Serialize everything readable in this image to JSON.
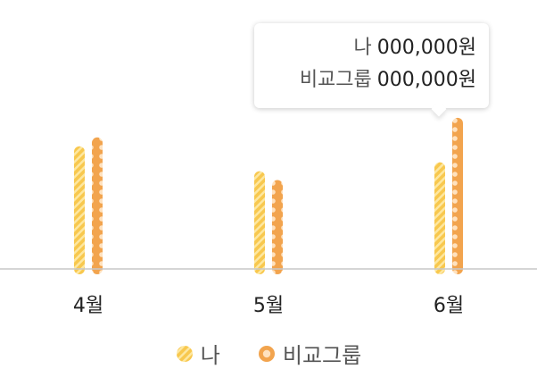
{
  "chart_data": {
    "type": "bar",
    "categories": [
      "4월",
      "5월",
      "6월"
    ],
    "series": [
      {
        "name": "나",
        "values": [
          138,
          110,
          120
        ],
        "color": "#F8C84E"
      },
      {
        "name": "비교그룹",
        "values": [
          148,
          100,
          170
        ],
        "color": "#F2A44E"
      }
    ],
    "ylim": [
      0,
      190
    ],
    "grid": false,
    "legend_position": "bottom-center",
    "tooltip": {
      "category": "6월",
      "rows": [
        {
          "label": "나",
          "value": "000,000원"
        },
        {
          "label": "비교그룹",
          "value": "000,000원"
        }
      ]
    }
  },
  "colors": {
    "baseline": "#C7C7C7",
    "series1_light": "#FDE7A0",
    "series2_dot": "#FFE2BF"
  }
}
